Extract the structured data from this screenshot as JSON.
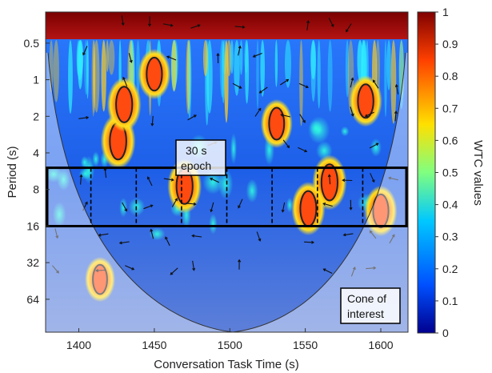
{
  "chart_data": {
    "type": "heatmap",
    "title": "",
    "xlabel": "Conversation Task Time (s)",
    "ylabel": "Period (s)",
    "x_ticks": [
      1400,
      1450,
      1500,
      1550,
      1600
    ],
    "x_range": [
      1378,
      1618
    ],
    "y_ticks": [
      "0.5",
      "1",
      "2",
      "4",
      "8",
      "16",
      "32",
      "64"
    ],
    "y_tick_values": [
      0.5,
      1,
      2,
      4,
      8,
      16,
      32,
      64
    ],
    "y_range_log2": [
      -1.85,
      6.9
    ],
    "y_scale": "log2",
    "colorbar": {
      "label": "WTC values",
      "ticks": [
        "0",
        "0.1",
        "0.2",
        "0.3",
        "0.4",
        "0.5",
        "0.6",
        "0.7",
        "0.8",
        "0.9",
        "1"
      ],
      "range": [
        0,
        1
      ],
      "colors": [
        "#00008f",
        "#0050ff",
        "#00c8ff",
        "#80ff80",
        "#ffe000",
        "#ff4000",
        "#800000"
      ]
    },
    "highlight_band": {
      "period_min": 5.3,
      "period_max": 16
    },
    "epoch_boundaries": [
      1408,
      1438,
      1468,
      1498,
      1528,
      1558,
      1588
    ],
    "annotations": [
      {
        "text": "30 s epoch",
        "lines": [
          "30 s",
          "epoch"
        ]
      },
      {
        "text": "Cone of interest",
        "lines": [
          "Cone of",
          "interest"
        ]
      }
    ],
    "hot_spots": [
      {
        "t": 1426,
        "period": 3.2,
        "value": 0.95
      },
      {
        "t": 1430,
        "period": 1.6,
        "value": 0.9
      },
      {
        "t": 1470,
        "period": 7.5,
        "value": 0.9
      },
      {
        "t": 1566,
        "period": 7.0,
        "value": 0.92
      },
      {
        "t": 1552,
        "period": 11.5,
        "value": 0.88
      },
      {
        "t": 1600,
        "period": 12.0,
        "value": 0.8
      },
      {
        "t": 1590,
        "period": 1.5,
        "value": 0.82
      },
      {
        "t": 1531,
        "period": 2.3,
        "value": 0.75
      },
      {
        "t": 1414,
        "period": 44,
        "value": 0.65
      },
      {
        "t": 1450,
        "period": 0.9,
        "value": 0.8
      }
    ]
  }
}
